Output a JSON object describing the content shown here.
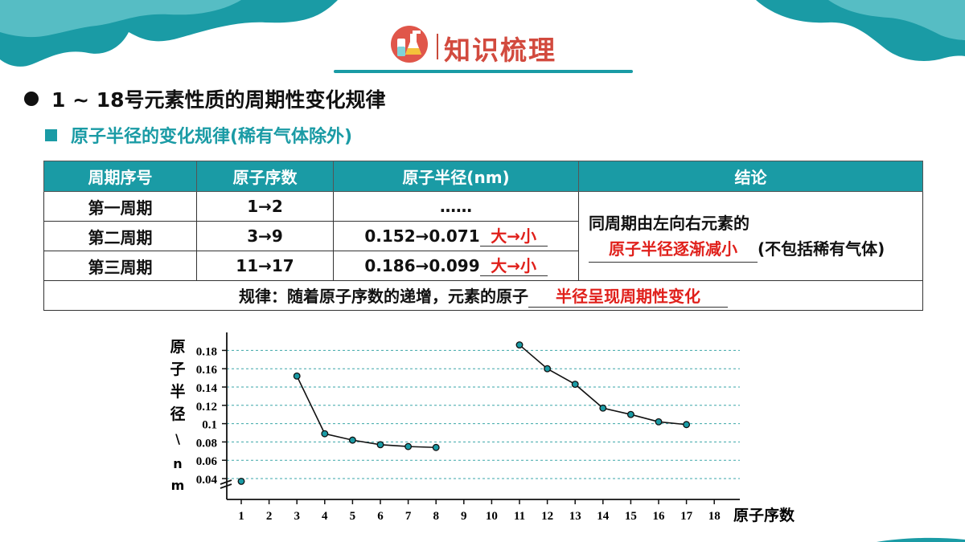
{
  "header": {
    "title": "知识梳理",
    "logo_icon": "chemistry-flask-icon"
  },
  "colors": {
    "teal": "#1a9ba5",
    "red": "#e0201b",
    "title_red": "#d24a3e"
  },
  "section": {
    "title": "1 ~ 18号元素性质的周期性变化规律"
  },
  "subsection": {
    "title": "原子半径的变化规律(稀有气体除外)"
  },
  "table": {
    "headers": [
      "周期序号",
      "原子序数",
      "原子半径(nm)",
      "结论"
    ],
    "rows": [
      {
        "period": "第一周期",
        "numbers": "1→2",
        "radius": "……",
        "answer": ""
      },
      {
        "period": "第二周期",
        "numbers": "3→9",
        "radius": "0.152→0.071",
        "answer": "大→小"
      },
      {
        "period": "第三周期",
        "numbers": "11→17",
        "radius": "0.186→0.099",
        "answer": "大→小"
      }
    ],
    "conclusion": {
      "text1": "同周期由左向右元素的",
      "answer": "原子半径逐渐减小",
      "text2": "(不包括稀有气体)"
    },
    "rule": {
      "prefix": "规律：随着原子序数的递增，元素的原子",
      "answer": "半径呈现周期性变化"
    }
  },
  "chart_data": {
    "type": "line",
    "ylabel": "原子半径\\nm",
    "xlabel": "原子序数",
    "x_ticks": [
      "1",
      "2",
      "3",
      "4",
      "5",
      "6",
      "7",
      "8",
      "9",
      "10",
      "11",
      "12",
      "13",
      "14",
      "15",
      "16",
      "17",
      "18"
    ],
    "y_ticks": [
      "0.04",
      "0.06",
      "0.08",
      "0.1",
      "0.12",
      "0.14",
      "0.16",
      "0.18"
    ],
    "ylim": [
      0.04,
      0.18
    ],
    "grid": true,
    "series": [
      {
        "points": [
          [
            1,
            0.037
          ]
        ]
      },
      {
        "points": [
          [
            3,
            0.152
          ],
          [
            4,
            0.089
          ],
          [
            5,
            0.082
          ],
          [
            6,
            0.077
          ],
          [
            7,
            0.075
          ],
          [
            8,
            0.074
          ]
        ]
      },
      {
        "points": [
          [
            11,
            0.186
          ],
          [
            12,
            0.16
          ],
          [
            13,
            0.143
          ],
          [
            14,
            0.117
          ],
          [
            15,
            0.11
          ],
          [
            16,
            0.102
          ],
          [
            17,
            0.099
          ]
        ]
      }
    ]
  }
}
